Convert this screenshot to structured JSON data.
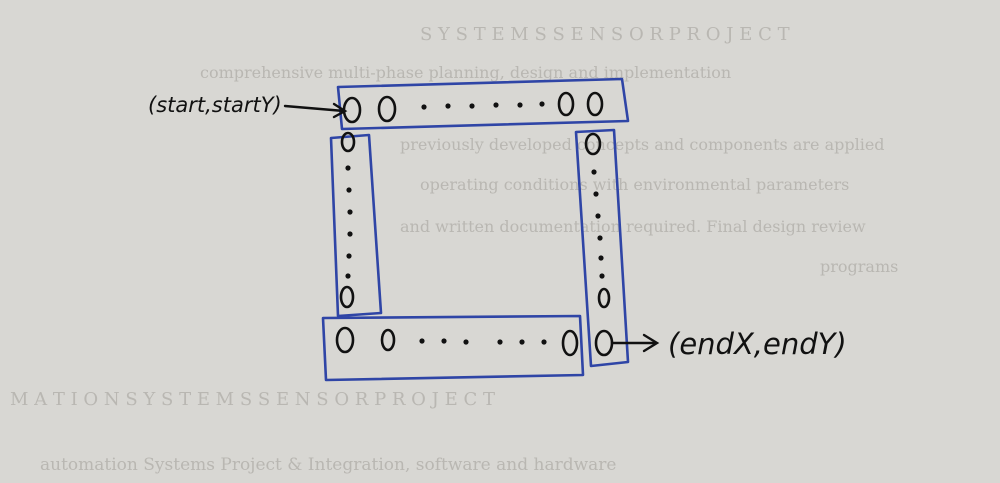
{
  "diagram": {
    "labels": {
      "start": "(start,startY)",
      "end": "(endX,endY)"
    },
    "colors": {
      "paper": "#d8d7d3",
      "ink_blue": "#2f45a6",
      "ink_black": "#111111",
      "bleed_text": "#b9b7b2"
    },
    "background_bleed_lines": [
      "S Y S T E M S   S E N S O R   P R O J E C T",
      "comprehensive multi-phase planning, design and implementation",
      "previously developed concepts and components are applied",
      "operating conditions with environmental parameters",
      "and written documentation required. Final design review",
      "programs",
      "M A T I O N   S Y S T E M S   S E N S O R   P R O J E C T",
      "automation Systems Project & Integration, software and hardware"
    ]
  }
}
